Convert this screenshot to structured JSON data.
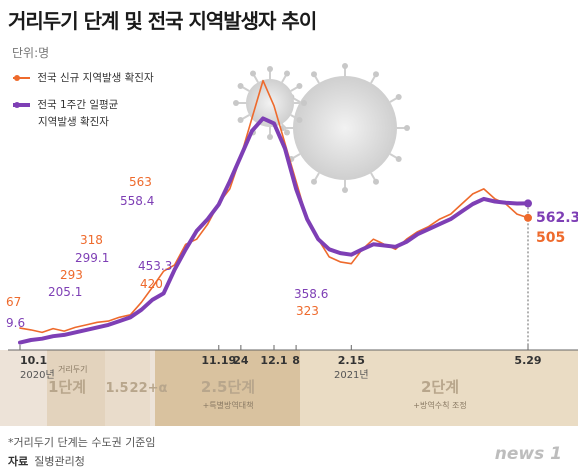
{
  "title": "거리두기 단계 및 전국 지역발생자 추이",
  "unit_label": "단위:명",
  "footnote": "*거리두기 단계는 수도권 기준임",
  "source_label": "자료",
  "source": "질병관리청",
  "logo": "news 1",
  "colors": {
    "new_cases": "#ee6a2c",
    "weekly_avg": "#7e3fb5",
    "axis": "#888888"
  },
  "icons": [
    "virus-icon",
    "virus-icon-large"
  ],
  "legend": [
    {
      "label": "전국 신규 지역발생 확진자",
      "color": "#ee6a2c"
    },
    {
      "label": "전국 1주간 일평균",
      "label2": "지역발생 확진자",
      "color": "#7e3fb5"
    }
  ],
  "x_ticks": [
    {
      "label": "10.1",
      "sub": "2020년"
    },
    {
      "label": "11.19"
    },
    {
      "label": "24"
    },
    {
      "label": "12.1"
    },
    {
      "label": "8"
    },
    {
      "label": "2.15",
      "sub": "2021년"
    },
    {
      "label": "5.29"
    }
  ],
  "stages_header": "거리두기",
  "stages": [
    {
      "label": "1단계",
      "sub": ""
    },
    {
      "label": "1.5",
      "sub": ""
    },
    {
      "label": "2",
      "sub": ""
    },
    {
      "label": "2+α",
      "sub": ""
    },
    {
      "label": "2.5단계",
      "sub": "+특별방역대책"
    },
    {
      "label": "2단계",
      "sub": "+방역수칙 조정"
    }
  ],
  "chart_data": {
    "type": "line",
    "title": "거리두기 단계 및 전국 지역발생자 추이",
    "ylabel": "단위:명",
    "ylim": [
      0,
      1100
    ],
    "grid": false,
    "legend_position": "top-left",
    "x_start": "2020-10-01",
    "x_end": "2021-05-29",
    "x_ticks": [
      "10.1",
      "11.19",
      "24",
      "12.1",
      "8",
      "2.15",
      "5.29"
    ],
    "series": [
      {
        "name": "전국 신규 지역발생 확진자",
        "values": [
          67,
          60,
          50,
          65,
          55,
          70,
          80,
          90,
          95,
          110,
          120,
          170,
          230,
          293,
          318,
          400,
          420,
          480,
          563,
          620,
          750,
          900,
          1050,
          950,
          800,
          650,
          500,
          420,
          350,
          330,
          323,
          380,
          420,
          400,
          380,
          420,
          450,
          470,
          500,
          520,
          560,
          600,
          620,
          580,
          560,
          520,
          505
        ],
        "color": "#ee6a2c"
      },
      {
        "name": "전국 1주간 일평균 지역발생 확진자",
        "values": [
          9.6,
          20,
          25,
          35,
          40,
          50,
          60,
          70,
          80,
          95,
          110,
          140,
          180,
          205.1,
          299.1,
          380,
          453.3,
          500,
          558.4,
          650,
          750,
          850,
          900,
          880,
          780,
          620,
          500,
          420,
          380,
          365,
          358.6,
          380,
          400,
          395,
          390,
          410,
          440,
          460,
          480,
          500,
          530,
          560,
          580,
          570,
          565,
          562,
          562.3
        ],
        "color": "#7e3fb5"
      }
    ],
    "annotations": [
      {
        "series": 0,
        "index": 0,
        "text": "67"
      },
      {
        "series": 1,
        "index": 0,
        "text": "9.6"
      },
      {
        "series": 0,
        "index": 13,
        "text": "293"
      },
      {
        "series": 1,
        "index": 13,
        "text": "205.1"
      },
      {
        "series": 0,
        "index": 14,
        "text": "318"
      },
      {
        "series": 1,
        "index": 14,
        "text": "299.1"
      },
      {
        "series": 1,
        "index": 16,
        "text": "453.3"
      },
      {
        "series": 0,
        "index": 16,
        "text": "420"
      },
      {
        "series": 0,
        "index": 18,
        "text": "563"
      },
      {
        "series": 1,
        "index": 18,
        "text": "558.4"
      },
      {
        "series": 1,
        "index": 30,
        "text": "358.6"
      },
      {
        "series": 0,
        "index": 30,
        "text": "323"
      },
      {
        "series": 1,
        "index": 46,
        "text": "562.3"
      },
      {
        "series": 0,
        "index": 46,
        "text": "505"
      }
    ]
  }
}
